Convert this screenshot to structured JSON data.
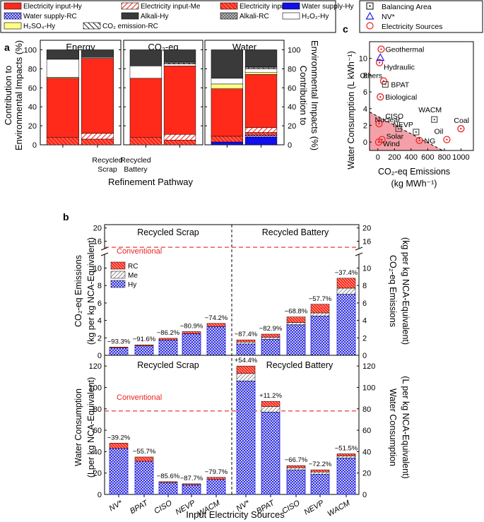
{
  "colors": {
    "elec_hy": "#ff2a1a",
    "elec_me": "#ff2a1a",
    "elec_rc": "#ff2a1a",
    "water_hy": "#1010e8",
    "water_rc": "#2a2ae0",
    "alkali_hy": "#3a3a3a",
    "alkali_rc": "#888888",
    "h2o2_hy": "#ffffff",
    "h2so4_hy": "#ffff88",
    "co2_rc": "#000000",
    "conventional": "#ee2222",
    "region": "#f4a0a8",
    "hy_blue": "#2222dd"
  },
  "panel_a": {
    "label": "a",
    "legend": {
      "elec_hy": "Electricity input-Hy",
      "elec_me": "Electricity input-Me",
      "elec_rc": "Electricity input-RC",
      "water_hy": "Water supply-Hy",
      "water_rc": "Water supply-RC",
      "alkali_hy": "Alkali-Hy",
      "alkali_rc": "Alkali-RC",
      "h2o2_hy": "H₂O₂-Hy",
      "h2so4_hy": "H₂SO₄-Hy",
      "co2_rc": "CO₂ emission-RC"
    },
    "ylabel_left_1": "Contribution to",
    "ylabel_left_2": "Environmental Impacts (%)",
    "ylabel_right_1": "Contribution to",
    "ylabel_right_2": "Environmental Impacts (%)",
    "xlabel": "Refinement Pathway",
    "yticks": [
      "0",
      "20",
      "40",
      "60",
      "80",
      "100"
    ],
    "cat1_line1": "Recycled",
    "cat1_line2": "Scrap",
    "cat2_line1": "Recycled",
    "cat2_line2": "Battery"
  },
  "panel_c": {
    "label": "c",
    "legend_balancing": "Balancing Area",
    "legend_nv": "NV*",
    "legend_elec": "Electricity Sources",
    "ylabel": "Water Consumption (L kWh⁻¹)",
    "xlabel_1": "CO₂-eq Emissions",
    "xlabel_2": "(kg MWh⁻¹)",
    "xticks": [
      "0",
      "200",
      "400",
      "600",
      "800",
      "1000"
    ],
    "yticks": [
      "0",
      "2",
      "4",
      "6",
      "8",
      "10"
    ]
  },
  "panel_b": {
    "label": "b",
    "top_ylabel_left_1": "CO₂-eq Emissions",
    "top_ylabel_left_2": "(kg per kg NCA-Equivalent)",
    "top_ylabel_right_1": "CO₂-eq Emissions",
    "top_ylabel_right_2": "(kg per kg NCA-Equivalent)",
    "bot_ylabel_left_1": "Water Consumption",
    "bot_ylabel_left_2": "(Lper kg NCA-Equivalent)",
    "bot_ylabel_right_1": "Water Consumption",
    "bot_ylabel_right_2": "(L per kg NCA-Equivalent)",
    "section_scrap": "Recycled Scrap",
    "section_battery": "Recycled Battery",
    "conventional_label": "Conventional",
    "legend_rc": "RC",
    "legend_me": "Me",
    "legend_hy": "Hy",
    "xlabel": "Input Electricity Sources",
    "top_yticks_low": [
      "0",
      "2",
      "4",
      "6",
      "8",
      "10"
    ],
    "top_yticks_high": [
      "16",
      "20"
    ],
    "bot_yticks": [
      "0",
      "20",
      "40",
      "60",
      "80",
      "100",
      "120"
    ]
  },
  "chart_data": [
    {
      "type": "bar",
      "panel": "a",
      "stacked": true,
      "groups": [
        "Energy",
        "CO2-eq",
        "Water"
      ],
      "categories": [
        "Recycled Scrap",
        "Recycled Battery"
      ],
      "ylim": [
        0,
        100
      ],
      "stack_order": [
        "water_hy",
        "water_rc",
        "elec_rc",
        "elec_me",
        "elec_hy",
        "h2so4_hy",
        "h2o2_hy",
        "co2_rc",
        "alkali_rc",
        "alkali_hy"
      ],
      "values": {
        "Energy": {
          "Recycled Scrap": {
            "water_hy": 0,
            "water_rc": 0,
            "elec_rc": 8,
            "elec_me": 0,
            "elec_hy": 62,
            "h2so4_hy": 1,
            "h2o2_hy": 19,
            "co2_rc": 0,
            "alkali_rc": 0,
            "alkali_hy": 10
          },
          "Recycled Battery": {
            "water_hy": 0,
            "water_rc": 0,
            "elec_rc": 6,
            "elec_me": 6,
            "elec_hy": 79,
            "h2so4_hy": 0,
            "h2o2_hy": 1,
            "co2_rc": 0,
            "alkali_rc": 0,
            "alkali_hy": 8
          }
        },
        "CO2-eq": {
          "Recycled Scrap": {
            "water_hy": 0,
            "water_rc": 0,
            "elec_rc": 8,
            "elec_me": 0,
            "elec_hy": 62,
            "h2so4_hy": 0,
            "h2o2_hy": 13,
            "co2_rc": 0,
            "alkali_rc": 0,
            "alkali_hy": 17
          },
          "Recycled Battery": {
            "water_hy": 0,
            "water_rc": 0,
            "elec_rc": 5,
            "elec_me": 6,
            "elec_hy": 72,
            "h2so4_hy": 0,
            "h2o2_hy": 2,
            "co2_rc": 1,
            "alkali_rc": 1,
            "alkali_hy": 13
          }
        },
        "Water": {
          "Recycled Scrap": {
            "water_hy": 3,
            "water_rc": 0,
            "elec_rc": 6,
            "elec_me": 0,
            "elec_hy": 50,
            "h2so4_hy": 5,
            "h2o2_hy": 6,
            "co2_rc": 0,
            "alkali_rc": 0,
            "alkali_hy": 30
          },
          "Recycled Battery": {
            "water_hy": 8,
            "water_rc": 2,
            "elec_rc": 3,
            "elec_me": 5,
            "elec_hy": 56,
            "h2so4_hy": 2,
            "h2o2_hy": 4,
            "co2_rc": 1,
            "alkali_rc": 1,
            "alkali_hy": 18
          }
        }
      }
    },
    {
      "type": "scatter",
      "panel": "c",
      "xlabel": "CO₂-eq Emissions (kg MWh⁻¹)",
      "ylabel": "Water Consumption (L kWh⁻¹)",
      "xlim": [
        -100,
        1150
      ],
      "ylim": [
        -1,
        12
      ],
      "series": [
        {
          "name": "Electricity Sources",
          "marker": "circle",
          "points": [
            {
              "label": "Geothermal",
              "x": 40,
              "y": 11.1
            },
            {
              "label": "Hydraulic",
              "x": 20,
              "y": 9.5
            },
            {
              "label": "Others",
              "x": 70,
              "y": 7.3
            },
            {
              "label": "Biological",
              "x": 30,
              "y": 5.4
            },
            {
              "label": "Nuclear",
              "x": 15,
              "y": 2.2
            },
            {
              "label": "Solar",
              "x": 50,
              "y": 0.3
            },
            {
              "label": "Wind",
              "x": 10,
              "y": 0.0
            },
            {
              "label": "NG",
              "x": 500,
              "y": 0.2
            },
            {
              "label": "Oil",
              "x": 830,
              "y": 0.3
            },
            {
              "label": "Coal",
              "x": 1000,
              "y": 1.6
            }
          ]
        },
        {
          "name": "Balancing Area",
          "marker": "square",
          "points": [
            {
              "label": "BPAT",
              "x": 90,
              "y": 6.9
            },
            {
              "label": "CISO",
              "x": 250,
              "y": 1.6
            },
            {
              "label": "NEVP",
              "x": 460,
              "y": 1.2
            },
            {
              "label": "WACM",
              "x": 680,
              "y": 2.7
            }
          ]
        },
        {
          "name": "NV*",
          "marker": "triangle",
          "points": [
            {
              "label": "",
              "x": 30,
              "y": 10.1
            }
          ]
        }
      ]
    },
    {
      "type": "bar",
      "panel": "b-top",
      "stacked": true,
      "ylabel": "CO₂-eq Emissions (kg per kg NCA-Equivalent)",
      "ylim_broken": [
        [
          0,
          11.5
        ],
        [
          14,
          21
        ]
      ],
      "conventional": 14.2,
      "groups": [
        {
          "name": "Recycled Scrap",
          "categories": [
            "NV*",
            "BPAT",
            "CISO",
            "NEVP",
            "WACM"
          ],
          "hy": [
            0.84,
            1.08,
            1.75,
            2.48,
            3.3
          ],
          "me": [
            0,
            0,
            0,
            0,
            0
          ],
          "rc": [
            0.11,
            0.12,
            0.2,
            0.24,
            0.36
          ],
          "labels": [
            "−93.3%",
            "−91.6%",
            "−86.2%",
            "−80.9%",
            "−74.2%"
          ]
        },
        {
          "name": "Recycled Battery",
          "categories": [
            "NV*",
            "BPAT",
            "CISO",
            "NEVP",
            "WACM"
          ],
          "hy": [
            1.3,
            1.85,
            3.5,
            4.5,
            7.0
          ],
          "me": [
            0.22,
            0.22,
            0.26,
            0.36,
            0.7
          ],
          "rc": [
            0.25,
            0.36,
            0.64,
            0.99,
            1.14
          ],
          "labels": [
            "−87.4%",
            "−82.9%",
            "−68.8%",
            "−57.7%",
            "−37.4%"
          ]
        }
      ]
    },
    {
      "type": "bar",
      "panel": "b-bottom",
      "stacked": true,
      "ylabel": "Water Consumption (L per kg NCA-Equivalent)",
      "ylim": [
        0,
        130
      ],
      "conventional": 78,
      "groups": [
        {
          "name": "Recycled Scrap",
          "categories": [
            "NV*",
            "BPAT",
            "CISO",
            "NEVP",
            "WACM"
          ],
          "hy": [
            43,
            31,
            11,
            9,
            14
          ],
          "me": [
            0,
            0,
            0,
            0,
            0
          ],
          "rc": [
            5,
            4,
            1,
            1,
            2
          ],
          "labels": [
            "−39.2%",
            "−55.7%",
            "−85.6%",
            "−87.7%",
            "−79.7%"
          ]
        },
        {
          "name": "Recycled Battery",
          "categories": [
            "NV*",
            "BPAT",
            "CISO",
            "NEVP",
            "WACM"
          ],
          "hy": [
            106,
            77,
            23,
            19,
            34
          ],
          "me": [
            7,
            5,
            2,
            2,
            2
          ],
          "rc": [
            7,
            5,
            2,
            2,
            2
          ],
          "labels": [
            "+54.4%",
            "+11.2%",
            "−66.7%",
            "−72.2%",
            "−51.5%"
          ]
        }
      ]
    }
  ]
}
